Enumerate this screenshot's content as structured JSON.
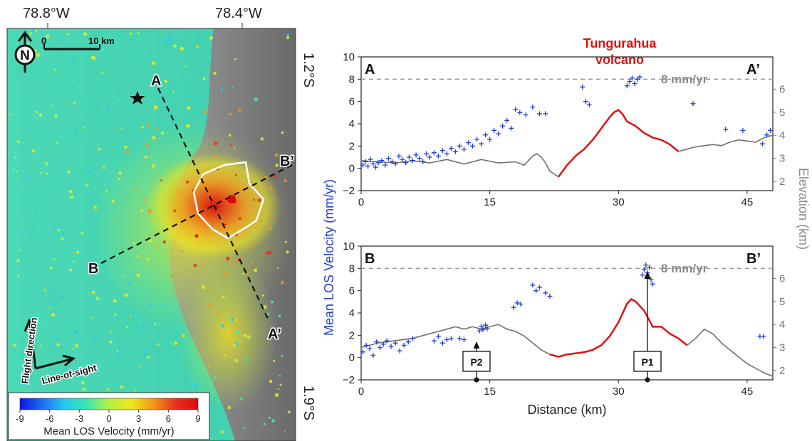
{
  "map": {
    "lon_labels": [
      "78.8°W",
      "78.4°W"
    ],
    "lat_labels": [
      "1.2°S",
      "1.9°S"
    ],
    "scale_labels": [
      "0",
      "10 km"
    ],
    "north_letter": "N",
    "volcano_star_icon": "star-icon",
    "profile_letters": {
      "a": "A",
      "a_end": "A’",
      "b": "B",
      "b_end": "B’"
    },
    "flight_label": "Flight direction",
    "los_label": "Line-of-sight",
    "colorbar": {
      "ticks": [
        "-9",
        "-6",
        "-3",
        "0",
        "3",
        "6",
        "9"
      ],
      "label": "Mean LOS Velocity (mm/yr)",
      "colors": [
        "#0a14e6",
        "#1e6ef0",
        "#28c8f0",
        "#3ce6b4",
        "#b4f046",
        "#f0e61e",
        "#f0961e",
        "#e6321e",
        "#dc0a0a"
      ]
    }
  },
  "profiles": {
    "volcano_label_line1": "Tungurahua",
    "volcano_label_line2": "volcano",
    "y_label": "Mean LOS Velocity (mm/yr)",
    "y_right_label": "Elevation (km)",
    "x_label": "Distance (km)",
    "reference_label": "8 mm/yr",
    "y_ticks": [
      "10",
      "8",
      "6",
      "4",
      "2",
      "0",
      "−2"
    ],
    "x_ticks": [
      "0",
      "15",
      "30",
      "45"
    ],
    "elev_ticks": [
      "6",
      "5",
      "4",
      "3",
      "2"
    ],
    "top": {
      "left_letter": "A",
      "right_letter": "A’"
    },
    "bottom": {
      "left_letter": "B",
      "right_letter": "B’",
      "p2": "P2",
      "p1": "P1"
    },
    "colors": {
      "points": "#1f3fd6",
      "volcano_topo": "#e01010",
      "topo": "#707070",
      "reference": "#999999"
    }
  },
  "chart_data": [
    {
      "type": "scatter",
      "panel": "A–A’",
      "xlabel": "Distance (km)",
      "ylabel": "Mean LOS Velocity (mm/yr)",
      "y2label": "Elevation (km)",
      "xlim": [
        0,
        48
      ],
      "ylim": [
        -2,
        10
      ],
      "y2lim": [
        1.6,
        7.4
      ],
      "reference_line": {
        "value": 8,
        "label": "8 mm/yr"
      },
      "series": [
        {
          "kind": "points",
          "x": [
            0.2,
            0.5,
            0.8,
            1.1,
            1.4,
            1.7,
            2.0,
            2.4,
            2.8,
            3.2,
            3.6,
            4.0,
            4.4,
            4.8,
            5.2,
            5.6,
            6.0,
            6.4,
            6.8,
            7.2,
            7.6,
            8.0,
            8.5,
            9.0,
            9.5,
            10.0,
            10.5,
            11.0,
            11.5,
            12.0,
            12.5,
            13.0,
            13.5,
            14.0,
            14.5,
            15.0,
            15.5,
            16.0,
            16.5,
            17.0,
            17.5,
            18.0,
            18.5,
            19.2,
            20.0,
            20.8,
            21.5,
            25.8,
            26.2,
            26.6,
            31.0,
            31.3,
            31.6,
            31.9,
            32.2,
            32.5,
            38.7,
            42.5,
            44.5,
            46.8,
            47.3,
            47.7
          ],
          "y": [
            0.3,
            0.6,
            0.2,
            0.8,
            0.4,
            0.1,
            0.5,
            0.7,
            0.3,
            0.9,
            0.6,
            0.4,
            1.1,
            0.8,
            0.5,
            1.0,
            0.7,
            1.2,
            0.9,
            0.6,
            1.3,
            1.0,
            1.4,
            1.1,
            1.6,
            1.3,
            1.8,
            1.5,
            2.0,
            1.7,
            2.3,
            2.0,
            2.6,
            2.2,
            3.0,
            2.6,
            3.4,
            3.1,
            3.8,
            4.3,
            3.6,
            5.3,
            5.0,
            4.8,
            5.5,
            4.9,
            4.9,
            7.3,
            6.0,
            5.7,
            7.4,
            7.8,
            8.1,
            7.6,
            8.0,
            8.2,
            5.8,
            3.5,
            3.4,
            2.2,
            3.0,
            3.4
          ]
        },
        {
          "kind": "line",
          "name": "topography",
          "x": [
            0,
            2,
            4,
            6,
            8,
            10,
            12,
            14,
            16,
            18,
            19,
            20,
            20.5,
            21,
            21.5,
            22,
            23
          ],
          "y": [
            2.9,
            2.85,
            2.8,
            2.9,
            2.8,
            2.95,
            2.75,
            2.95,
            2.8,
            2.85,
            2.7,
            3.1,
            3.2,
            3.05,
            2.8,
            2.45,
            2.2
          ]
        },
        {
          "kind": "line",
          "name": "Tungurahua volcano",
          "x": [
            23,
            24,
            25,
            26,
            27,
            28,
            29,
            29.5,
            30,
            30.5,
            31,
            32,
            33,
            34,
            35,
            36,
            37
          ],
          "y": [
            2.2,
            2.7,
            3.1,
            3.4,
            3.8,
            4.3,
            4.8,
            5.0,
            5.1,
            4.9,
            4.6,
            4.4,
            4.1,
            3.9,
            3.8,
            3.6,
            3.3
          ]
        },
        {
          "kind": "line",
          "name": "topography",
          "x": [
            37,
            38,
            39,
            40,
            41,
            42,
            43,
            44,
            45,
            46,
            47,
            48
          ],
          "y": [
            3.3,
            3.4,
            3.5,
            3.55,
            3.6,
            3.55,
            3.7,
            3.8,
            3.75,
            3.7,
            3.9,
            4.0
          ]
        }
      ]
    },
    {
      "type": "scatter",
      "panel": "B–B’",
      "xlabel": "Distance (km)",
      "ylabel": "Mean LOS Velocity (mm/yr)",
      "y2label": "Elevation (km)",
      "xlim": [
        0,
        48
      ],
      "ylim": [
        -2,
        10
      ],
      "y2lim": [
        1.6,
        7.4
      ],
      "reference_line": {
        "value": 8,
        "label": "8 mm/yr"
      },
      "markers": [
        {
          "label": "P2",
          "x": 14
        },
        {
          "label": "P1",
          "x": 33.5
        }
      ],
      "series": [
        {
          "kind": "points",
          "x": [
            0.2,
            0.6,
            1.0,
            1.4,
            1.8,
            2.2,
            2.6,
            3.0,
            3.5,
            4.0,
            4.5,
            5.0,
            5.5,
            6.0,
            8.5,
            9.0,
            9.5,
            10.0,
            10.5,
            11.5,
            12.0,
            13.8,
            14.0,
            14.2,
            14.5,
            14.7,
            17.8,
            18.2,
            18.6,
            20.0,
            20.4,
            20.8,
            21.5,
            22.0,
            32.8,
            33.0,
            33.2,
            33.4,
            33.6,
            33.8,
            34.0,
            46.5,
            46.9
          ],
          "y": [
            0.5,
            1.1,
            0.8,
            0.2,
            1.4,
            0.9,
            1.2,
            1.5,
            1.0,
            1.3,
            0.6,
            1.1,
            1.4,
            1.7,
            1.5,
            1.9,
            1.3,
            1.6,
            1.7,
            1.7,
            1.6,
            2.4,
            2.8,
            2.5,
            2.9,
            2.6,
            4.5,
            4.9,
            4.8,
            6.5,
            6.0,
            6.3,
            5.8,
            5.5,
            7.4,
            7.9,
            8.3,
            7.6,
            8.1,
            7.0,
            6.6,
            1.9,
            1.9
          ]
        },
        {
          "kind": "line",
          "name": "topography",
          "x": [
            0,
            2,
            4,
            6,
            8,
            10,
            11,
            12,
            13,
            14,
            15,
            16,
            17,
            18,
            19,
            20,
            21,
            22
          ],
          "y": [
            3.0,
            3.2,
            3.3,
            3.4,
            3.6,
            3.8,
            3.9,
            3.8,
            3.9,
            3.8,
            3.9,
            4.0,
            3.8,
            3.7,
            3.5,
            3.2,
            2.9,
            2.7
          ]
        },
        {
          "kind": "line",
          "name": "Tungurahua volcano",
          "x": [
            22,
            23,
            24,
            25,
            26,
            27,
            28,
            29,
            30,
            31,
            31.5,
            32,
            33,
            34,
            35,
            36,
            37,
            38
          ],
          "y": [
            2.7,
            2.6,
            2.7,
            2.75,
            2.8,
            2.9,
            3.1,
            3.5,
            4.1,
            4.9,
            5.1,
            5.0,
            4.6,
            3.9,
            3.9,
            3.6,
            3.4,
            3.1
          ]
        },
        {
          "kind": "line",
          "name": "topography",
          "x": [
            38,
            39,
            40,
            41,
            42,
            43,
            44,
            45,
            46,
            47,
            48
          ],
          "y": [
            3.1,
            3.4,
            3.8,
            3.6,
            3.2,
            2.9,
            2.6,
            2.3,
            2.1,
            1.9,
            1.75
          ]
        }
      ]
    }
  ]
}
